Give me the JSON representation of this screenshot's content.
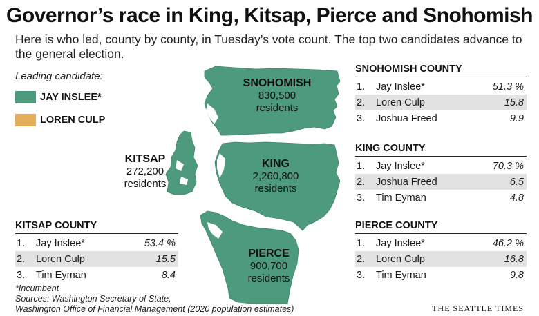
{
  "title": "Governor’s race in King, Kitsap, Pierce and Snohomish",
  "subtitle": "Here is who led, county by county, in Tuesday’s vote count. The top two candidates advance to the general election.",
  "legend": {
    "title": "Leading candidate:",
    "items": [
      {
        "label": "JAY INSLEE*",
        "color": "#4e9a7c"
      },
      {
        "label": "LOREN CULP",
        "color": "#e3ad5c"
      }
    ]
  },
  "map": {
    "snohomish": {
      "name": "SNOHOMISH",
      "residents": "830,500",
      "suffix": "residents",
      "leader_color": "#4e9a7c"
    },
    "king": {
      "name": "KING",
      "residents": "2,260,800",
      "suffix": "residents",
      "leader_color": "#4e9a7c"
    },
    "kitsap": {
      "name": "KITSAP",
      "residents": "272,200",
      "suffix": "residents",
      "leader_color": "#4e9a7c"
    },
    "pierce": {
      "name": "PIERCE",
      "residents": "900,700",
      "suffix": "residents",
      "leader_color": "#4e9a7c"
    }
  },
  "results": {
    "snohomish": {
      "title": "SNOHOMISH COUNTY",
      "rows": [
        {
          "rank": "1.",
          "name": "Jay Inslee*",
          "pct": "51.3 %"
        },
        {
          "rank": "2.",
          "name": "Loren Culp",
          "pct": "15.8"
        },
        {
          "rank": "3.",
          "name": "Joshua Freed",
          "pct": "9.9"
        }
      ]
    },
    "king": {
      "title": "KING COUNTY",
      "rows": [
        {
          "rank": "1.",
          "name": "Jay Inslee*",
          "pct": "70.3 %"
        },
        {
          "rank": "2.",
          "name": "Joshua Freed",
          "pct": "6.5"
        },
        {
          "rank": "3.",
          "name": "Tim Eyman",
          "pct": "4.8"
        }
      ]
    },
    "pierce": {
      "title": "PIERCE COUNTY",
      "rows": [
        {
          "rank": "1.",
          "name": "Jay Inslee*",
          "pct": "46.2 %"
        },
        {
          "rank": "2.",
          "name": "Loren Culp",
          "pct": "16.8"
        },
        {
          "rank": "3.",
          "name": "Tim Eyman",
          "pct": "9.8"
        }
      ]
    },
    "kitsap": {
      "title": "KITSAP COUNTY",
      "rows": [
        {
          "rank": "1.",
          "name": "Jay Inslee*",
          "pct": "53.4 %"
        },
        {
          "rank": "2.",
          "name": "Loren Culp",
          "pct": "15.5"
        },
        {
          "rank": "3.",
          "name": "Tim Eyman",
          "pct": "8.4"
        }
      ]
    }
  },
  "footnote": {
    "incumbent": "*Incumbent",
    "sources_line1": "Sources: Washington Secretary of State,",
    "sources_line2": "Washington Office of Financial Management (2020 population estimates)"
  },
  "credit": "THE SEATTLE TIMES"
}
